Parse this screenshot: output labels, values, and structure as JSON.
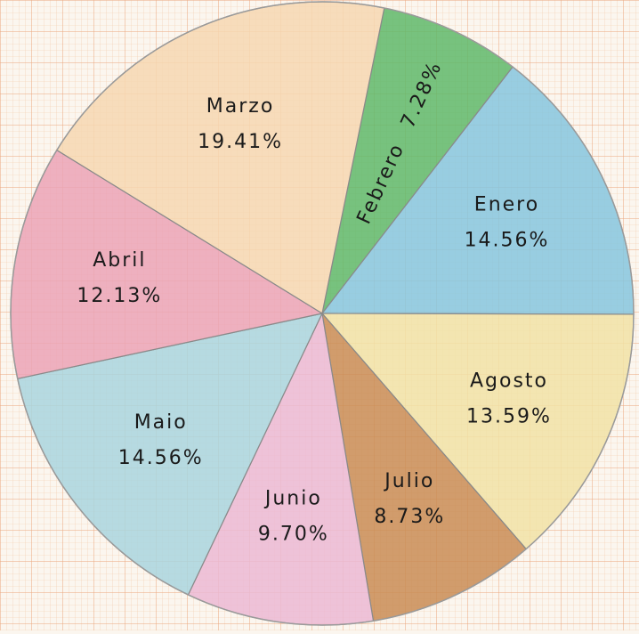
{
  "chart_data": {
    "type": "pie",
    "categories": [
      "Febrero",
      "Enero",
      "Agosto",
      "Julio",
      "Junio",
      "Maio",
      "Abril",
      "Marzo"
    ],
    "values": [
      7.28,
      14.56,
      13.59,
      8.73,
      9.7,
      14.56,
      12.13,
      19.41
    ],
    "value_labels": [
      "7.28%",
      "14.56%",
      "13.59%",
      "8.73%",
      "9.70%",
      "14.56%",
      "12.13%",
      "19.41%"
    ],
    "colors": [
      "#5fb86a",
      "#86c6de",
      "#f1e2a6",
      "#c98c55",
      "#ebb8d3",
      "#a9d5de",
      "#eba3b6",
      "#f6d7b2"
    ]
  }
}
